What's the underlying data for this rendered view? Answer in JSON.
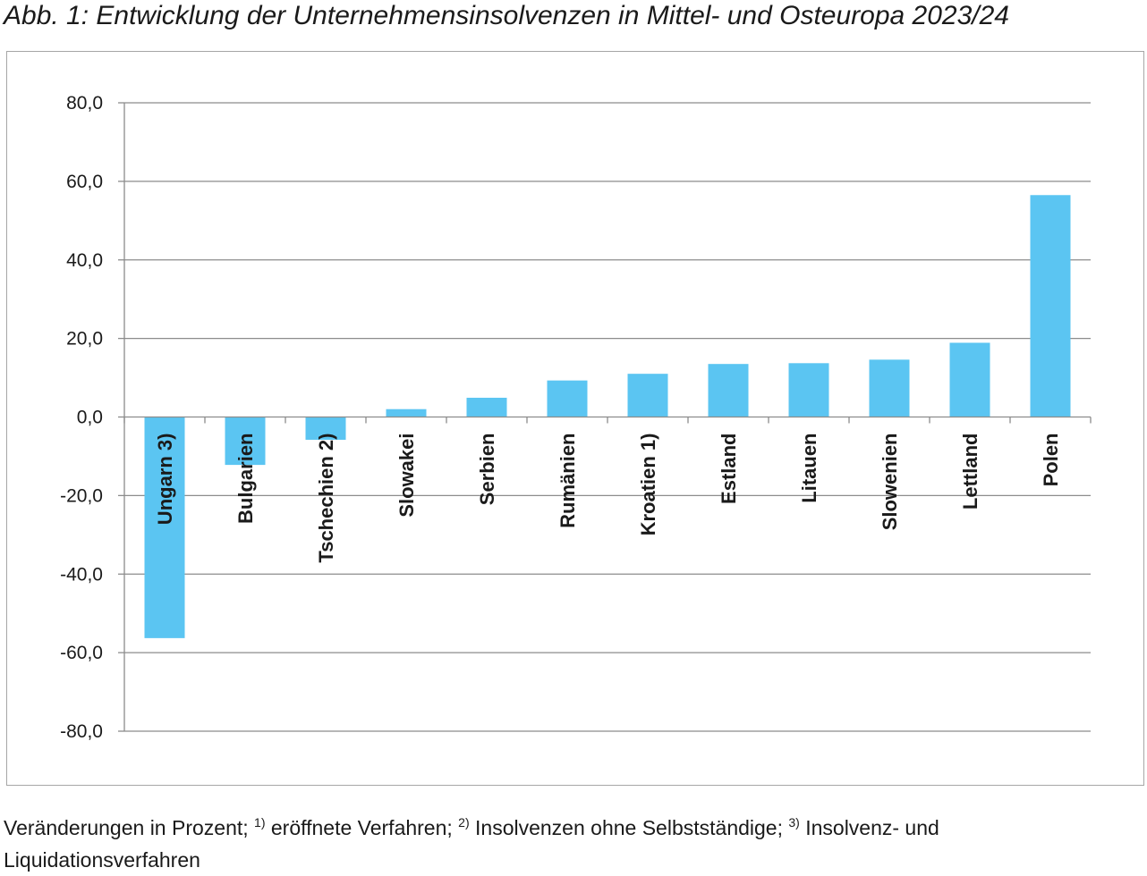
{
  "title": "Abb. 1: Entwicklung der Unternehmensinsolvenzen in Mittel- und Osteuropa 2023/24",
  "footnote": {
    "line1_text": "Veränderungen in Prozent; ",
    "sup1": "1)",
    "text2": " eröffnete Verfahren; ",
    "sup2": "2)",
    "text3": " Insolvenzen ohne Selbstständige; ",
    "sup3": "3)",
    "text4": " Insolvenz- und Liquidationsverfahren"
  },
  "colors": {
    "bar": "#5bc5f2",
    "grid": "#8c8c8c",
    "axis": "#8c8c8c"
  },
  "chart_data": {
    "type": "bar",
    "title": "",
    "xlabel": "",
    "ylabel": "",
    "ylim": [
      -80,
      80
    ],
    "yticks": [
      80,
      60,
      40,
      20,
      0,
      -20,
      -40,
      -60,
      -80
    ],
    "ytick_labels": [
      "80,0",
      "60,0",
      "40,0",
      "20,0",
      "0,0",
      "-20,0",
      "-40,0",
      "-60,0",
      "-80,0"
    ],
    "grid": true,
    "categories": [
      "Ungarn 3)",
      "Bulgarien",
      "Tschechien 2)",
      "Slowakei",
      "Serbien",
      "Rumänien",
      "Kroatien 1)",
      "Estland",
      "Litauen",
      "Slowenien",
      "Lettland",
      "Polen"
    ],
    "values": [
      -56.3,
      -12.2,
      -5.8,
      2.0,
      4.9,
      9.3,
      11.0,
      13.5,
      13.7,
      14.6,
      18.9,
      56.5
    ]
  }
}
